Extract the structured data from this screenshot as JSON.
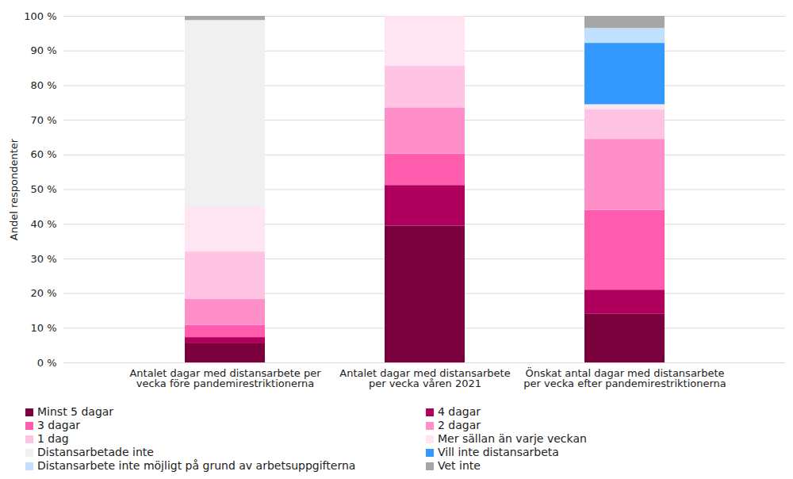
{
  "chart_data": {
    "type": "bar",
    "stacked": true,
    "grid": true,
    "legend": "bottom",
    "y_label": "Andel respondenter",
    "categories": [
      "Antalet dagar med distansarbete per vecka före pandemirestriktionerna",
      "Antalet dagar med distansarbete per vecka våren 2021",
      "Önskat antal dagar med distansarbete per vecka efter pandemirestriktionerna"
    ],
    "series": [
      {
        "name": "Minst 5 dagar",
        "color": "#7a003c",
        "values": [
          5.5,
          39.5,
          14
        ]
      },
      {
        "name": "4 dagar",
        "color": "#b0005e",
        "values": [
          1.8,
          11.7,
          7
        ]
      },
      {
        "name": "3 dagar",
        "color": "#ff5cad",
        "values": [
          3.5,
          9.1,
          23
        ]
      },
      {
        "name": "2 dagar",
        "color": "#ff8fc8",
        "values": [
          7.5,
          13.3,
          20.5
        ]
      },
      {
        "name": "1 dag",
        "color": "#ffc4e3",
        "values": [
          13.7,
          12.1,
          8.5
        ]
      },
      {
        "name": "Mer sällan än varje veckan",
        "color": "#ffe4f1",
        "values": [
          13,
          14.3,
          1.5
        ]
      },
      {
        "name": "Distansarbetade inte",
        "color": "#f0f0f0",
        "values": [
          53.8,
          0,
          0
        ]
      },
      {
        "name": "Vill inte distansarbeta",
        "color": "#3399ff",
        "values": [
          0,
          0,
          17.7
        ]
      },
      {
        "name": "Distansarbete inte möjligt på grund av arbetsuppgifterna",
        "color": "#bfe0ff",
        "values": [
          0,
          0,
          4.3
        ]
      },
      {
        "name": "Vet inte",
        "color": "#a6a6a6",
        "values": [
          1.2,
          0,
          3.5
        ]
      }
    ],
    "ylim": [
      0,
      100
    ],
    "yticks": [
      {
        "value": 0,
        "label": "0 %"
      },
      {
        "value": 10,
        "label": "10 %"
      },
      {
        "value": 20,
        "label": "20 %"
      },
      {
        "value": 30,
        "label": "30 %"
      },
      {
        "value": 40,
        "label": "40 %"
      },
      {
        "value": 50,
        "label": "50 %"
      },
      {
        "value": 60,
        "label": "60 %"
      },
      {
        "value": 70,
        "label": "70 %"
      },
      {
        "value": 80,
        "label": "80 %"
      },
      {
        "value": 90,
        "label": "90 %"
      },
      {
        "value": 100,
        "label": "100 %"
      }
    ]
  }
}
